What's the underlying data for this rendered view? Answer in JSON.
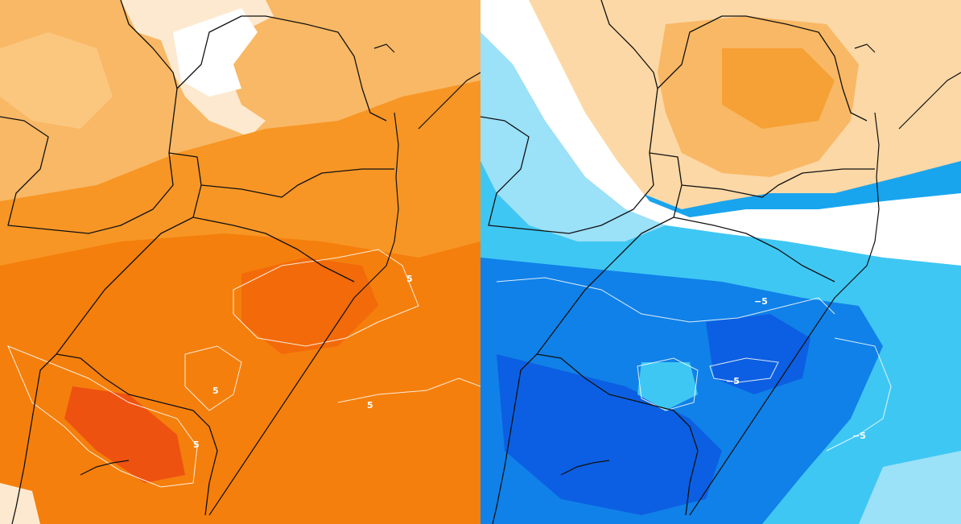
{
  "panels": [
    {
      "name": "warm-anomaly",
      "colors": {
        "palette": [
          "#fde9cf",
          "#fbc77f",
          "#f9ad4e",
          "#f79625",
          "#f57f0c",
          "#f26a0a",
          "#ee5210"
        ]
      },
      "contour_labels": [
        "5",
        "5",
        "5",
        "5"
      ]
    },
    {
      "name": "cold-anomaly",
      "colors": {
        "palette": [
          "#e3f6fd",
          "#9be1f8",
          "#3fc7f3",
          "#19a4ee",
          "#1081e8",
          "#0c5fe2",
          "#0a3fd6"
        ],
        "warm": [
          "#fbd8a6",
          "#f9b865",
          "#f6a135"
        ]
      },
      "contour_labels": [
        "−5",
        "−5",
        "−5"
      ]
    }
  ]
}
